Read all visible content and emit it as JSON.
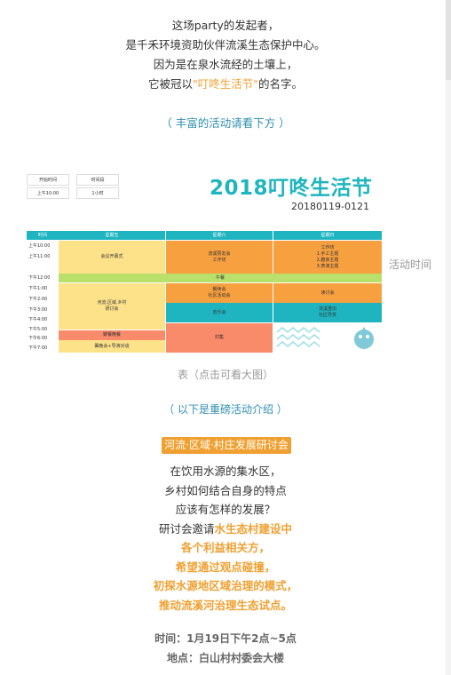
{
  "intro": {
    "line1": "这场party的发起者，",
    "line2": "是千禾环境资助伙伴流溪生态保护中心。",
    "line3": "因为是在泉水流经的土壤上，",
    "line4_pre": "它被冠以",
    "line4_highlight": "\"叮咚生活节\"",
    "line4_post": "的名字。"
  },
  "subtitle_activities": "（ 丰富的活动请看下方 ）",
  "schedule": {
    "mini_table": {
      "headers": [
        "开始时间",
        "时间段"
      ],
      "values": [
        "上午10:00",
        "1小时"
      ]
    },
    "title": "2018叮咚生活节",
    "date": "20180119-0121",
    "columns": [
      "时间",
      "星期五",
      "星期六",
      "星期日"
    ],
    "times": [
      "上午10:00",
      "上午11:00",
      "下午12:00",
      "下午1:00",
      "下午2:00",
      "下午3:00",
      "下午4:00",
      "下午5:00",
      "下午6:00",
      "下午7:00"
    ],
    "cells": {
      "fri_opening": "会议开幕式",
      "sat_morning": "流溪赞友会\n工作坊",
      "sun_morning": "工作坊\n1.手工主题\n2.趣食主题\n3.表演主题",
      "lunch": "午餐",
      "fri_seminar": "河流.区域.乡村\n研讨会",
      "sat_reading": "朗读会\n社区活动会",
      "sun_discussion": "读讨会",
      "sat_music": "音乐会",
      "sun_closing": "流溪重出\n社区导赏",
      "fri_dinner": "聚餐晚餐",
      "fri_evening": "篝晚会+导演对谈",
      "sat_market": "村集"
    },
    "colors": {
      "teal": "#1fb5c0",
      "yellow": "#fde28a",
      "orange": "#f7a040",
      "green": "#b8e06a",
      "salmon": "#f98a6a"
    }
  },
  "side_label": "活动时间",
  "caption": "表（点击可看大图）",
  "subtitle_intro": "（ 以下是重磅活动介绍 ）",
  "tag": "河流·区域·村庄发展研讨会",
  "body": {
    "line1": "在饮用水源的集水区，",
    "line2": "乡村如何结合自身的特点",
    "line3": "应该有怎样的发展？",
    "line4_pre": "研讨会邀请",
    "line4_highlight": "水生态村建设中",
    "line5": "各个利益相关方，",
    "line6": "希望通过观点碰撞，",
    "line7": "初探水源地区域治理的模式，",
    "line8": "推动流溪河治理生态试点。"
  },
  "info": {
    "time": "时间：1月19日下午2点~5点",
    "place": "地点：白山村村委会大楼"
  }
}
